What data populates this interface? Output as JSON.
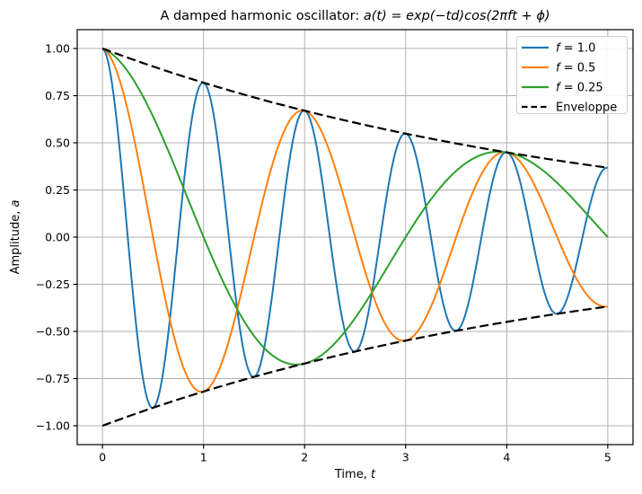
{
  "title": {
    "prefix": "A damped harmonic oscillator: ",
    "math": "a(t) = exp(−td)cos(2πft + ϕ)"
  },
  "axes": {
    "xlabel_prefix": "Time, ",
    "xlabel_var": "t",
    "ylabel_prefix": "Amplitude, ",
    "ylabel_var": "a"
  },
  "legend": {
    "items": [
      {
        "italic": "f",
        "rest": " = 1.0",
        "color": "#1f77b4",
        "dashed": false
      },
      {
        "italic": "f",
        "rest": " = 0.5",
        "color": "#ff7f0e",
        "dashed": false
      },
      {
        "italic": "f",
        "rest": " = 0.25",
        "color": "#2ca02c",
        "dashed": false
      },
      {
        "italic": "",
        "rest": "Enveloppe",
        "color": "#000000",
        "dashed": true
      }
    ]
  },
  "chart_data": {
    "type": "line",
    "title": "A damped harmonic oscillator: a(t) = exp(−td)cos(2πft + ϕ)",
    "xlabel": "Time, t",
    "ylabel": "Amplitude, a",
    "xlim": [
      -0.25,
      5.25
    ],
    "ylim": [
      -1.1,
      1.1
    ],
    "x_ticks": [
      0,
      1,
      2,
      3,
      4,
      5
    ],
    "y_ticks": [
      -1.0,
      -0.75,
      -0.5,
      -0.25,
      0.0,
      0.25,
      0.5,
      0.75,
      1.0
    ],
    "x_tick_labels": [
      "0",
      "1",
      "2",
      "3",
      "4",
      "5"
    ],
    "y_tick_labels": [
      "−1.00",
      "−0.75",
      "−0.50",
      "−0.25",
      "0.00",
      "0.25",
      "0.50",
      "0.75",
      "1.00"
    ],
    "grid": true,
    "grid_color": "#b0b0b0",
    "legend_position": "upper right",
    "model": "a(t) = exp(-d*t) * cos(2*pi*f*t + phi)",
    "damping_d": 0.2,
    "phase_phi": 0,
    "t_range": [
      0,
      5
    ],
    "x_samples": [
      0,
      1,
      2,
      3,
      4,
      5
    ],
    "series": [
      {
        "name": "f = 1.0",
        "f": 1.0,
        "color": "#1f77b4",
        "style": "solid",
        "values_at_samples": [
          1.0,
          0.819,
          0.67,
          0.549,
          0.449,
          0.368
        ]
      },
      {
        "name": "f = 0.5",
        "f": 0.5,
        "color": "#ff7f0e",
        "style": "solid",
        "values_at_samples": [
          1.0,
          -0.819,
          0.67,
          -0.549,
          0.449,
          -0.368
        ]
      },
      {
        "name": "f = 0.25",
        "f": 0.25,
        "color": "#2ca02c",
        "style": "solid",
        "values_at_samples": [
          1.0,
          0.0,
          -0.67,
          0.0,
          0.449,
          0.0
        ]
      }
    ],
    "envelope": {
      "name": "Enveloppe",
      "expr": "±exp(-d*t)",
      "color": "#000000",
      "style": "dashed",
      "top_values_at_samples": [
        1.0,
        0.819,
        0.67,
        0.549,
        0.449,
        0.368
      ],
      "bottom_values_at_samples": [
        -1.0,
        -0.819,
        -0.67,
        -0.549,
        -0.449,
        -0.368
      ]
    }
  }
}
